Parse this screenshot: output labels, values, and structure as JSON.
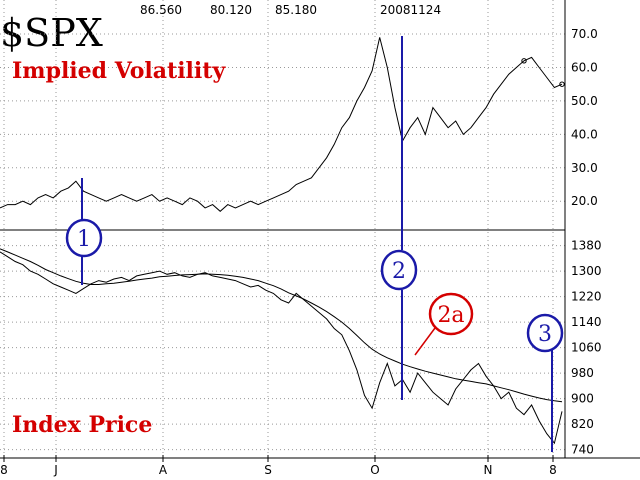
{
  "header": {
    "symbol": "$SPX",
    "values": [
      "86.560",
      "80.120",
      "85.180"
    ],
    "date": "20081124"
  },
  "chart_data": [
    {
      "type": "line",
      "title": "Implied Volatility",
      "yticks": [
        "70.0",
        "60.0",
        "50.0",
        "40.0",
        "30.0",
        "20.0"
      ],
      "ytick_values": [
        70,
        60,
        50,
        40,
        30,
        20
      ],
      "ylim": [
        12,
        73
      ],
      "series": [
        {
          "values": [
            18,
            19,
            19,
            20,
            19,
            21,
            22,
            21,
            23,
            24,
            26,
            23,
            22,
            21,
            20,
            21,
            22,
            21,
            20,
            21,
            22,
            20,
            21,
            20,
            19,
            21,
            20,
            18,
            19,
            17,
            19,
            18,
            19,
            20,
            19,
            20,
            21,
            22,
            23,
            25,
            26,
            27,
            30,
            33,
            37,
            42,
            45,
            50,
            54,
            59,
            69,
            60,
            48,
            38,
            42,
            45,
            40,
            48,
            45,
            42,
            44,
            40,
            42,
            45,
            48,
            52,
            55,
            58,
            60,
            62,
            63,
            60,
            57,
            54,
            55
          ]
        }
      ]
    },
    {
      "type": "line",
      "title": "Index Price",
      "yticks": [
        "1380",
        "1300",
        "1220",
        "1140",
        "1060",
        "980",
        "900",
        "820",
        "740"
      ],
      "ytick_values": [
        1380,
        1300,
        1220,
        1140,
        1060,
        980,
        900,
        820,
        740
      ],
      "ylim": [
        720,
        1410
      ],
      "xticks": [
        "8",
        "J",
        "A",
        "S",
        "O",
        "N",
        "8"
      ],
      "series": [
        {
          "values": [
            1360,
            1345,
            1330,
            1320,
            1300,
            1290,
            1275,
            1260,
            1250,
            1240,
            1230,
            1245,
            1260,
            1270,
            1265,
            1275,
            1280,
            1270,
            1285,
            1290,
            1295,
            1300,
            1290,
            1295,
            1285,
            1280,
            1290,
            1295,
            1285,
            1280,
            1275,
            1270,
            1260,
            1250,
            1255,
            1240,
            1230,
            1210,
            1200,
            1230,
            1210,
            1190,
            1170,
            1150,
            1120,
            1100,
            1050,
            990,
            910,
            870,
            950,
            1010,
            940,
            960,
            920,
            980,
            950,
            920,
            900,
            880,
            930,
            960,
            990,
            1010,
            970,
            940,
            900,
            920,
            870,
            850,
            880,
            830,
            790,
            760,
            860
          ]
        },
        {
          "values": [
            1370,
            1360,
            1350,
            1340,
            1330,
            1318,
            1305,
            1295,
            1285,
            1276,
            1268,
            1262,
            1258,
            1258,
            1260,
            1262,
            1265,
            1268,
            1272,
            1275,
            1278,
            1282,
            1284,
            1286,
            1288,
            1289,
            1290,
            1291,
            1290,
            1289,
            1287,
            1284,
            1280,
            1275,
            1270,
            1262,
            1254,
            1244,
            1232,
            1222,
            1212,
            1200,
            1187,
            1173,
            1157,
            1140,
            1120,
            1098,
            1075,
            1055,
            1040,
            1028,
            1018,
            1008,
            1000,
            993,
            986,
            980,
            974,
            968,
            962,
            958,
            954,
            950,
            946,
            940,
            934,
            928,
            921,
            914,
            908,
            902,
            897,
            893,
            890
          ]
        }
      ]
    }
  ],
  "labels": {
    "implied_volatility": "Implied Volatility",
    "index_price": "Index Price"
  },
  "callouts": [
    {
      "text": "1",
      "color": "#1a1aa8"
    },
    {
      "text": "2",
      "color": "#1a1aa8"
    },
    {
      "text": "2a",
      "color": "#d40000"
    },
    {
      "text": "3",
      "color": "#1a1aa8"
    }
  ]
}
